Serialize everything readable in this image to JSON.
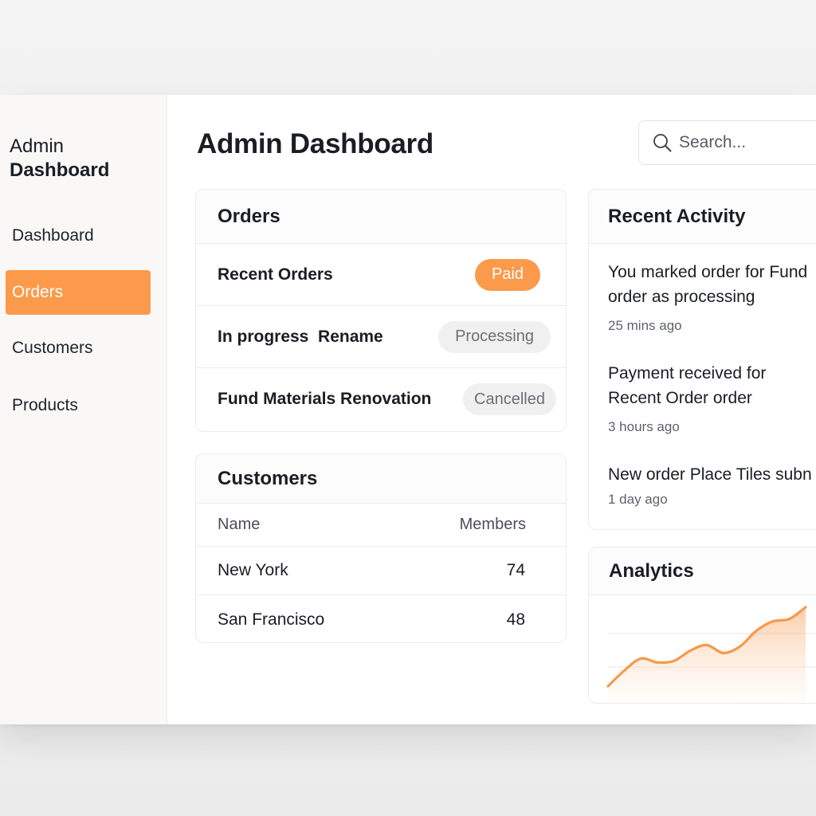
{
  "sidebar": {
    "brand_line1": "Admin",
    "brand_line2": "Dashboard",
    "items": [
      {
        "label": "Dashboard"
      },
      {
        "label": "Orders"
      },
      {
        "label": "Customers"
      },
      {
        "label": "Products"
      }
    ]
  },
  "header": {
    "title": "Admin Dashboard",
    "search_placeholder": "Search..."
  },
  "orders": {
    "title": "Orders",
    "rows": [
      {
        "name": "Recent Orders",
        "status": "Paid"
      },
      {
        "name": "In progress  Rename",
        "status": "Processing"
      },
      {
        "name": "Fund Materials Renovation",
        "status": "Cancelled"
      }
    ]
  },
  "customers": {
    "title": "Customers",
    "col_name": "Name",
    "col_members": "Members",
    "rows": [
      {
        "name": "New York",
        "members": "74"
      },
      {
        "name": "San Francisco",
        "members": "48"
      }
    ]
  },
  "activity": {
    "title": "Recent Activity",
    "items": [
      {
        "text": "You marked order for Fund\norder as processing",
        "time": "25 mins ago"
      },
      {
        "text": "Payment received for\nRecent Order order",
        "time": "3 hours ago"
      },
      {
        "text": "New order Place Tiles subn",
        "time": "1 day ago"
      }
    ]
  },
  "analytics": {
    "title": "Analytics"
  },
  "chart_data": {
    "type": "area",
    "x": [
      0,
      1,
      2,
      3,
      4,
      5,
      6,
      7,
      8,
      9,
      10,
      11,
      12
    ],
    "values": [
      10,
      30,
      45,
      40,
      42,
      55,
      62,
      52,
      60,
      80,
      92,
      95,
      110
    ],
    "grid": true,
    "color": "#f59a4c"
  },
  "colors": {
    "accent": "#fb9a4b"
  }
}
